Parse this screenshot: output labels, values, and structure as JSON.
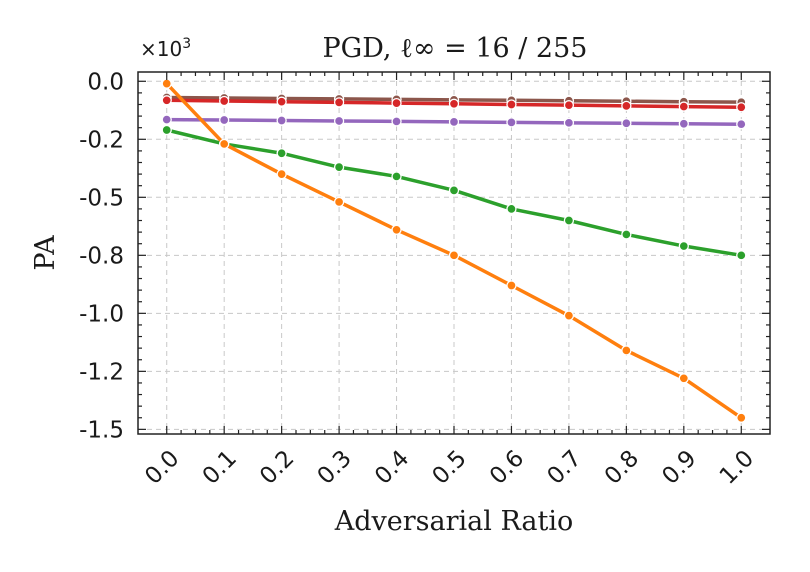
{
  "chart_data": {
    "type": "line",
    "title": "PGD, ℓ∞ = 16 / 255",
    "xlabel": "Adversarial Ratio",
    "ylabel": "PA",
    "y_multiplier_label": "×10",
    "y_multiplier_exponent": "3",
    "x": [
      0.0,
      0.1,
      0.2,
      0.3,
      0.4,
      0.5,
      0.6,
      0.7,
      0.8,
      0.9,
      1.0
    ],
    "x_tick_labels": [
      "0.0",
      "0.1",
      "0.2",
      "0.3",
      "0.4",
      "0.5",
      "0.6",
      "0.7",
      "0.8",
      "0.9",
      "1.0"
    ],
    "xlim": [
      -0.05,
      1.05
    ],
    "ylim": [
      -1.52,
      0.04
    ],
    "y_ticks": [
      0.0,
      -0.25,
      -0.5,
      -0.75,
      -1.0,
      -1.25,
      -1.5
    ],
    "y_tick_labels": [
      "0.0",
      "-0.2",
      "-0.5",
      "-0.8",
      "-1.0",
      "-1.2",
      "-1.5"
    ],
    "grid": true,
    "series": [
      {
        "name": "series-brown",
        "color": "#8c564b",
        "values": [
          -0.07,
          -0.072,
          -0.074,
          -0.076,
          -0.078,
          -0.08,
          -0.082,
          -0.084,
          -0.086,
          -0.088,
          -0.09
        ]
      },
      {
        "name": "series-red",
        "color": "#d62728",
        "values": [
          -0.082,
          -0.085,
          -0.088,
          -0.091,
          -0.094,
          -0.097,
          -0.1,
          -0.103,
          -0.106,
          -0.109,
          -0.112
        ]
      },
      {
        "name": "series-purple",
        "color": "#9467bd",
        "values": [
          -0.165,
          -0.167,
          -0.169,
          -0.171,
          -0.173,
          -0.175,
          -0.177,
          -0.179,
          -0.181,
          -0.183,
          -0.185
        ]
      },
      {
        "name": "series-green",
        "color": "#2ca02c",
        "values": [
          -0.21,
          -0.27,
          -0.31,
          -0.37,
          -0.41,
          -0.47,
          -0.55,
          -0.6,
          -0.66,
          -0.71,
          -0.75
        ]
      },
      {
        "name": "series-orange",
        "color": "#ff7f0e",
        "values": [
          -0.01,
          -0.27,
          -0.4,
          -0.52,
          -0.64,
          -0.75,
          -0.88,
          -1.01,
          -1.16,
          -1.28,
          -1.45
        ]
      }
    ]
  }
}
